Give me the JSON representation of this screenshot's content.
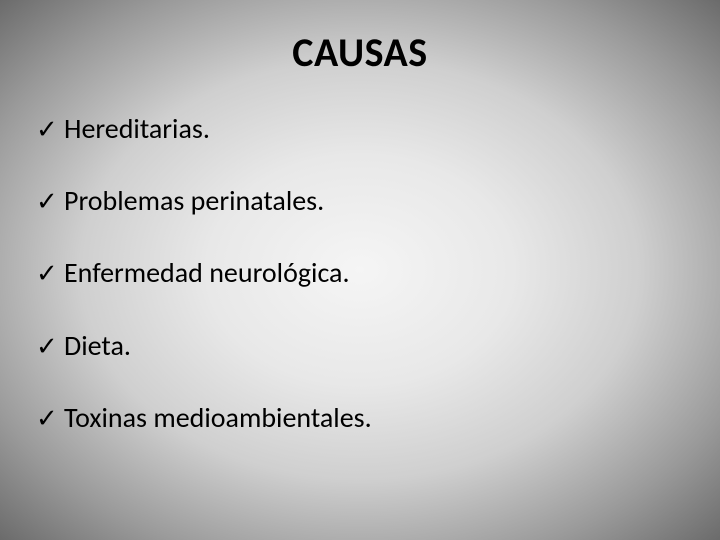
{
  "title": "CAUSAS",
  "title_fontsize": 40,
  "title_fontweight": 700,
  "title_color": "#000000",
  "background_gradient": {
    "type": "radial",
    "stops": [
      "#f5f5f5",
      "#e8e8e8",
      "#cfcfcf",
      "#9a9a9a",
      "#6b6b6b"
    ]
  },
  "list_fontsize": 28,
  "list_color": "#000000",
  "bullet_icon": "check",
  "bullet_color": "#000000",
  "items": [
    {
      "text": "Hereditarias."
    },
    {
      "text": "Problemas perinatales."
    },
    {
      "text": "Enfermedad neurológica."
    },
    {
      "text": "Dieta."
    },
    {
      "text": "Toxinas medioambientales."
    }
  ]
}
